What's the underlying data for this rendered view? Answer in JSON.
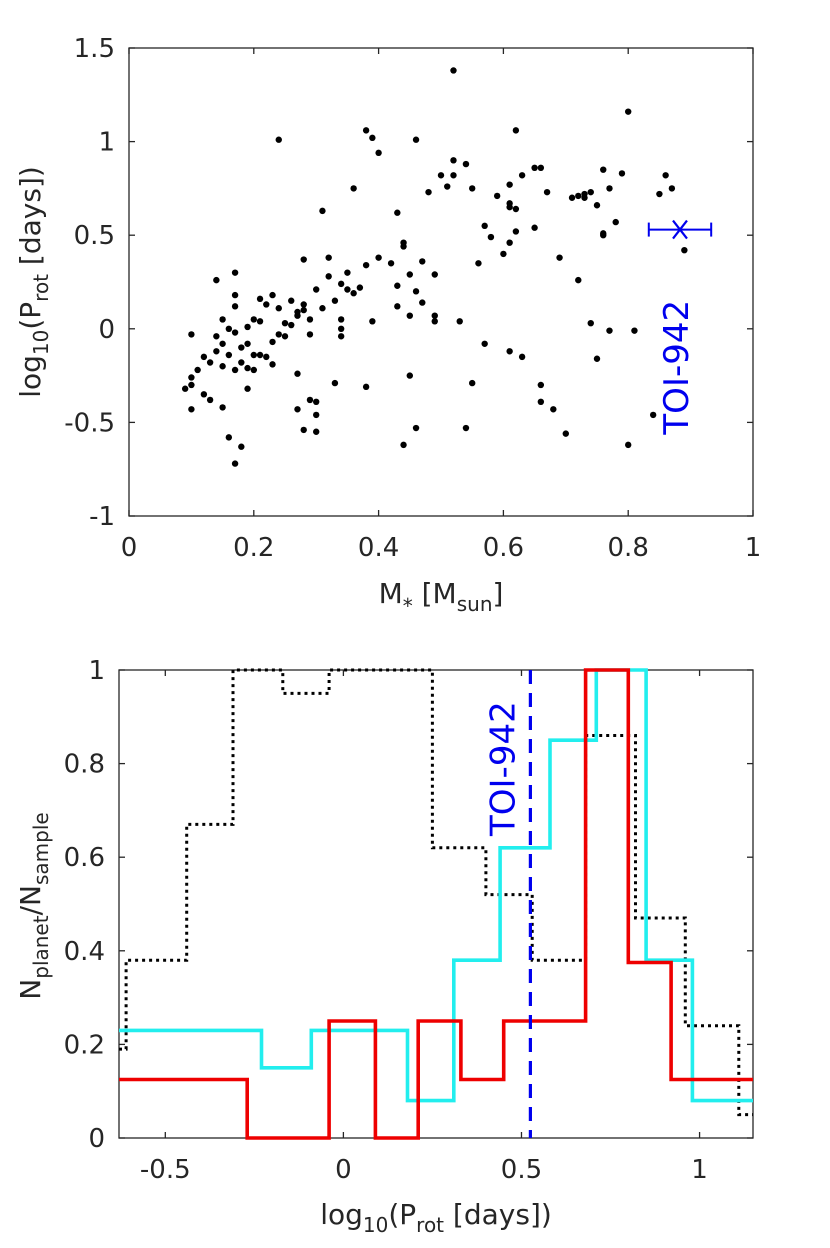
{
  "colors": {
    "black": "#000000",
    "blue": "#0000ee",
    "cyan": "#22eeee",
    "red": "#ee0000",
    "axis": "#262626"
  },
  "chart_data": [
    {
      "type": "scatter",
      "title": "",
      "xlabel": {
        "base": "M",
        "sup": "*",
        "bracket_open": " [M",
        "sub": "sun",
        "bracket_close": "]"
      },
      "ylabel": {
        "base": "log",
        "sub1": "10",
        "mid": "(P",
        "sub2": "rot",
        "tail": " [days])"
      },
      "xlim": [
        0,
        1
      ],
      "ylim": [
        -1,
        1.5
      ],
      "xticks": [
        0,
        0.2,
        0.4,
        0.6,
        0.8,
        1
      ],
      "xtick_labels": [
        "0",
        "0.2",
        "0.4",
        "0.6",
        "0.8",
        "1"
      ],
      "yticks": [
        -1,
        -0.5,
        0,
        0.5,
        1,
        1.5
      ],
      "ytick_labels": [
        "-1",
        "-0.5",
        "0",
        "0.5",
        "1",
        "1.5"
      ],
      "points": [
        [
          0.09,
          -0.32
        ],
        [
          0.1,
          -0.3
        ],
        [
          0.1,
          -0.26
        ],
        [
          0.1,
          -0.43
        ],
        [
          0.1,
          -0.03
        ],
        [
          0.11,
          -0.22
        ],
        [
          0.12,
          -0.35
        ],
        [
          0.12,
          -0.15
        ],
        [
          0.13,
          -0.18
        ],
        [
          0.13,
          -0.38
        ],
        [
          0.14,
          0.26
        ],
        [
          0.14,
          -0.12
        ],
        [
          0.14,
          -0.04
        ],
        [
          0.15,
          -0.08
        ],
        [
          0.15,
          -0.2
        ],
        [
          0.15,
          0.05
        ],
        [
          0.15,
          -0.42
        ],
        [
          0.16,
          -0.14
        ],
        [
          0.16,
          0.0
        ],
        [
          0.16,
          -0.58
        ],
        [
          0.17,
          -0.02
        ],
        [
          0.17,
          0.12
        ],
        [
          0.17,
          0.3
        ],
        [
          0.17,
          -0.22
        ],
        [
          0.17,
          -0.72
        ],
        [
          0.17,
          0.18
        ],
        [
          0.18,
          -0.1
        ],
        [
          0.18,
          -0.18
        ],
        [
          0.18,
          -0.63
        ],
        [
          0.19,
          -0.21
        ],
        [
          0.19,
          -0.32
        ],
        [
          0.19,
          0.01
        ],
        [
          0.19,
          -0.08
        ],
        [
          0.2,
          -0.22
        ],
        [
          0.2,
          0.05
        ],
        [
          0.2,
          -0.14
        ],
        [
          0.21,
          0.16
        ],
        [
          0.21,
          0.04
        ],
        [
          0.21,
          -0.14
        ],
        [
          0.22,
          -0.15
        ],
        [
          0.22,
          0.13
        ],
        [
          0.23,
          -0.07
        ],
        [
          0.23,
          0.18
        ],
        [
          0.23,
          -0.19
        ],
        [
          0.24,
          1.01
        ],
        [
          0.24,
          0.11
        ],
        [
          0.24,
          -0.03
        ],
        [
          0.25,
          -0.04
        ],
        [
          0.25,
          0.03
        ],
        [
          0.26,
          0.15
        ],
        [
          0.26,
          0.02
        ],
        [
          0.27,
          0.09
        ],
        [
          0.27,
          0.07
        ],
        [
          0.27,
          -0.24
        ],
        [
          0.27,
          -0.43
        ],
        [
          0.28,
          0.13
        ],
        [
          0.28,
          -0.54
        ],
        [
          0.28,
          0.37
        ],
        [
          0.28,
          0.1
        ],
        [
          0.29,
          -0.38
        ],
        [
          0.29,
          0.05
        ],
        [
          0.29,
          -0.03
        ],
        [
          0.3,
          0.21
        ],
        [
          0.3,
          -0.46
        ],
        [
          0.3,
          -0.55
        ],
        [
          0.3,
          -0.39
        ],
        [
          0.31,
          0.63
        ],
        [
          0.31,
          0.11
        ],
        [
          0.32,
          0.38
        ],
        [
          0.32,
          0.28
        ],
        [
          0.33,
          0.15
        ],
        [
          0.33,
          -0.29
        ],
        [
          0.34,
          0.05
        ],
        [
          0.34,
          0.24
        ],
        [
          0.34,
          0.0
        ],
        [
          0.34,
          -0.04
        ],
        [
          0.35,
          0.21
        ],
        [
          0.35,
          0.3
        ],
        [
          0.36,
          0.75
        ],
        [
          0.36,
          0.19
        ],
        [
          0.37,
          0.22
        ],
        [
          0.38,
          1.06
        ],
        [
          0.38,
          0.34
        ],
        [
          0.38,
          -0.31
        ],
        [
          0.39,
          1.02
        ],
        [
          0.39,
          0.04
        ],
        [
          0.4,
          0.94
        ],
        [
          0.4,
          0.38
        ],
        [
          0.42,
          0.35
        ],
        [
          0.43,
          0.62
        ],
        [
          0.43,
          0.23
        ],
        [
          0.43,
          0.12
        ],
        [
          0.44,
          -0.62
        ],
        [
          0.44,
          0.46
        ],
        [
          0.44,
          0.44
        ],
        [
          0.45,
          -0.25
        ],
        [
          0.45,
          0.29
        ],
        [
          0.45,
          0.07
        ],
        [
          0.46,
          1.01
        ],
        [
          0.46,
          -0.53
        ],
        [
          0.46,
          0.2
        ],
        [
          0.47,
          0.14
        ],
        [
          0.47,
          0.36
        ],
        [
          0.48,
          0.73
        ],
        [
          0.49,
          0.29
        ],
        [
          0.49,
          0.04
        ],
        [
          0.49,
          0.07
        ],
        [
          0.5,
          0.82
        ],
        [
          0.51,
          0.76
        ],
        [
          0.52,
          0.9
        ],
        [
          0.52,
          1.38
        ],
        [
          0.52,
          0.82
        ],
        [
          0.53,
          0.04
        ],
        [
          0.54,
          0.88
        ],
        [
          0.54,
          -0.53
        ],
        [
          0.55,
          0.75
        ],
        [
          0.55,
          -0.29
        ],
        [
          0.56,
          0.35
        ],
        [
          0.57,
          0.55
        ],
        [
          0.57,
          -0.08
        ],
        [
          0.58,
          0.49
        ],
        [
          0.59,
          0.71
        ],
        [
          0.6,
          0.4
        ],
        [
          0.61,
          0.46
        ],
        [
          0.61,
          0.77
        ],
        [
          0.61,
          0.67
        ],
        [
          0.61,
          0.65
        ],
        [
          0.61,
          -0.12
        ],
        [
          0.62,
          1.06
        ],
        [
          0.62,
          0.64
        ],
        [
          0.62,
          0.52
        ],
        [
          0.63,
          0.82
        ],
        [
          0.63,
          -0.15
        ],
        [
          0.65,
          0.86
        ],
        [
          0.65,
          0.54
        ],
        [
          0.66,
          0.86
        ],
        [
          0.66,
          -0.3
        ],
        [
          0.66,
          -0.39
        ],
        [
          0.67,
          0.73
        ],
        [
          0.68,
          -0.43
        ],
        [
          0.69,
          0.38
        ],
        [
          0.7,
          -0.56
        ],
        [
          0.71,
          0.7
        ],
        [
          0.72,
          0.71
        ],
        [
          0.72,
          0.26
        ],
        [
          0.73,
          0.72
        ],
        [
          0.73,
          0.7
        ],
        [
          0.74,
          0.03
        ],
        [
          0.74,
          0.73
        ],
        [
          0.75,
          0.66
        ],
        [
          0.75,
          -0.16
        ],
        [
          0.76,
          0.85
        ],
        [
          0.76,
          0.51
        ],
        [
          0.76,
          0.5
        ],
        [
          0.77,
          0.75
        ],
        [
          0.77,
          -0.01
        ],
        [
          0.78,
          0.57
        ],
        [
          0.79,
          0.83
        ],
        [
          0.8,
          1.16
        ],
        [
          0.8,
          -0.62
        ],
        [
          0.81,
          -0.01
        ],
        [
          0.84,
          -0.46
        ],
        [
          0.85,
          0.72
        ],
        [
          0.86,
          0.82
        ],
        [
          0.87,
          0.75
        ],
        [
          0.89,
          0.42
        ]
      ],
      "highlight": {
        "label": "TOI-942",
        "x": 0.883,
        "y": 0.53,
        "xerr": [
          0.833,
          0.933
        ],
        "marker": "x"
      }
    },
    {
      "type": "line",
      "title": "",
      "xlabel": {
        "base": "log",
        "sub1": "10",
        "mid": "(P",
        "sub2": "rot",
        "tail": " [days])"
      },
      "ylabel": {
        "base": "N",
        "sub1": "planet",
        "mid": "/N",
        "sub2": "sample"
      },
      "xlim": [
        -0.63,
        1.15
      ],
      "ylim": [
        0,
        1
      ],
      "xticks": [
        -0.5,
        0,
        0.5,
        1
      ],
      "xtick_labels": [
        "-0.5",
        "0",
        "0.5",
        "1"
      ],
      "yticks": [
        0,
        0.2,
        0.4,
        0.6,
        0.8,
        1
      ],
      "ytick_labels": [
        "0",
        "0.2",
        "0.4",
        "0.6",
        "0.8",
        "1"
      ],
      "series": [
        {
          "name": "black dotted",
          "style": "dotted",
          "color": "#000000",
          "points": [
            [
              -0.63,
              0.19
            ],
            [
              -0.61,
              0.19
            ],
            [
              -0.61,
              0.38
            ],
            [
              -0.53,
              0.38
            ],
            [
              -0.53,
              0.38
            ],
            [
              -0.44,
              0.38
            ],
            [
              -0.44,
              0.67
            ],
            [
              -0.31,
              0.67
            ],
            [
              -0.31,
              1.0
            ],
            [
              -0.17,
              1.0
            ],
            [
              -0.17,
              0.95
            ],
            [
              -0.04,
              0.95
            ],
            [
              -0.04,
              1.0
            ],
            [
              0.25,
              1.0
            ],
            [
              0.25,
              0.62
            ],
            [
              0.4,
              0.62
            ],
            [
              0.4,
              0.52
            ],
            [
              0.53,
              0.52
            ],
            [
              0.53,
              0.38
            ],
            [
              0.68,
              0.38
            ],
            [
              0.68,
              0.86
            ],
            [
              0.82,
              0.86
            ],
            [
              0.82,
              0.47
            ],
            [
              0.96,
              0.47
            ],
            [
              0.96,
              0.24
            ],
            [
              1.11,
              0.24
            ],
            [
              1.11,
              0.05
            ],
            [
              1.15,
              0.05
            ]
          ]
        },
        {
          "name": "cyan",
          "style": "solid",
          "color": "#22eeee",
          "points": [
            [
              -0.63,
              0.23
            ],
            [
              -0.23,
              0.23
            ],
            [
              -0.23,
              0.15
            ],
            [
              -0.09,
              0.15
            ],
            [
              -0.09,
              0.23
            ],
            [
              0.18,
              0.23
            ],
            [
              0.18,
              0.08
            ],
            [
              0.31,
              0.08
            ],
            [
              0.31,
              0.38
            ],
            [
              0.44,
              0.38
            ],
            [
              0.44,
              0.62
            ],
            [
              0.58,
              0.62
            ],
            [
              0.58,
              0.85
            ],
            [
              0.71,
              0.85
            ],
            [
              0.71,
              1.0
            ],
            [
              0.85,
              1.0
            ],
            [
              0.85,
              0.38
            ],
            [
              0.98,
              0.38
            ],
            [
              0.98,
              0.08
            ],
            [
              1.15,
              0.08
            ]
          ]
        },
        {
          "name": "red",
          "style": "solid",
          "color": "#ee0000",
          "points": [
            [
              -0.63,
              0.125
            ],
            [
              -0.27,
              0.125
            ],
            [
              -0.27,
              0.0
            ],
            [
              -0.04,
              0.0
            ],
            [
              -0.04,
              0.25
            ],
            [
              0.09,
              0.25
            ],
            [
              0.09,
              0.0
            ],
            [
              0.21,
              0.0
            ],
            [
              0.21,
              0.25
            ],
            [
              0.33,
              0.25
            ],
            [
              0.33,
              0.125
            ],
            [
              0.45,
              0.125
            ],
            [
              0.45,
              0.25
            ],
            [
              0.68,
              0.25
            ],
            [
              0.68,
              1.0
            ],
            [
              0.8,
              1.0
            ],
            [
              0.8,
              0.375
            ],
            [
              0.92,
              0.375
            ],
            [
              0.92,
              0.125
            ],
            [
              1.15,
              0.125
            ]
          ]
        }
      ],
      "vline": {
        "x": 0.525,
        "label": "TOI-942",
        "style": "dashed",
        "color": "#0000ee"
      }
    }
  ]
}
